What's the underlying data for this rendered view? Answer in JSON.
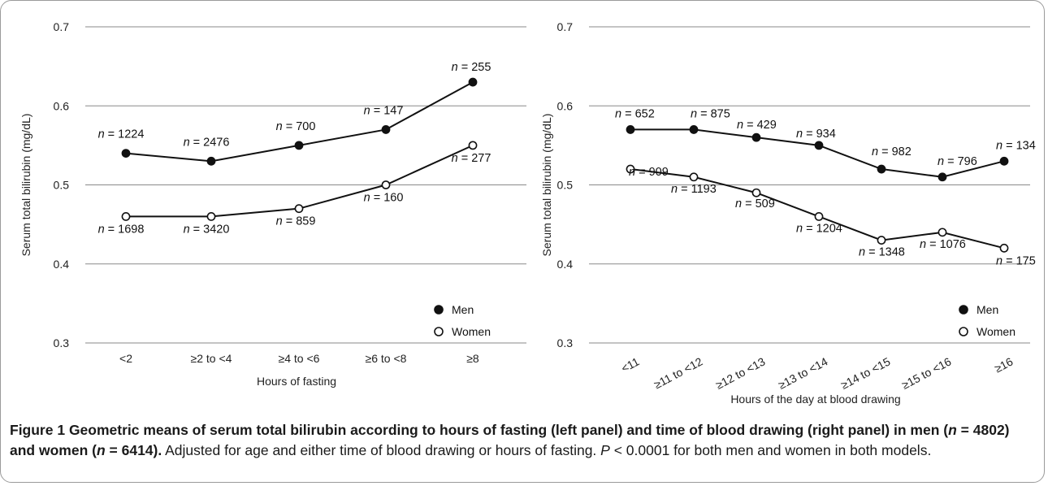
{
  "chart_data": [
    {
      "type": "line",
      "xlabel": "Hours of fasting",
      "ylabel": "Serum total bilirubin (mg/dL)",
      "categories": [
        "<2",
        "≥2 to <4",
        "≥4 to <6",
        "≥6 to <8",
        "≥8"
      ],
      "ylim": [
        0.3,
        0.7
      ],
      "yticks": [
        "0.3",
        "0.4",
        "0.5",
        "0.6",
        "0.7"
      ],
      "grid": true,
      "legend_position": "bottom-right",
      "series": [
        {
          "name": "Men",
          "marker": "filled",
          "values": [
            0.54,
            0.53,
            0.55,
            0.57,
            0.63
          ],
          "n": [
            "1224",
            "2476",
            "700",
            "147",
            "255"
          ]
        },
        {
          "name": "Women",
          "marker": "open",
          "values": [
            0.46,
            0.46,
            0.47,
            0.5,
            0.55
          ],
          "n": [
            "1698",
            "3420",
            "859",
            "160",
            "277"
          ]
        }
      ]
    },
    {
      "type": "line",
      "xlabel": "Hours of the day at blood drawing",
      "ylabel": "Serum total bilirubin (mg/dL)",
      "categories": [
        "<11",
        "≥11 to <12",
        "≥12 to <13",
        "≥13 to <14",
        "≥14 to <15",
        "≥15 to <16",
        "≥16"
      ],
      "ylim": [
        0.3,
        0.7
      ],
      "yticks": [
        "0.3",
        "0.4",
        "0.5",
        "0.6",
        "0.7"
      ],
      "grid": true,
      "legend_position": "bottom-right",
      "series": [
        {
          "name": "Men",
          "marker": "filled",
          "values": [
            0.57,
            0.57,
            0.56,
            0.55,
            0.52,
            0.51,
            0.53
          ],
          "n": [
            "652",
            "875",
            "429",
            "934",
            "982",
            "796",
            "134"
          ]
        },
        {
          "name": "Women",
          "marker": "open",
          "values": [
            0.52,
            0.51,
            0.49,
            0.46,
            0.43,
            0.44,
            0.42
          ],
          "n": [
            "909",
            "1193",
            "509",
            "1204",
            "1348",
            "1076",
            "175"
          ]
        }
      ]
    }
  ],
  "n_prefix": "n",
  "n_equals": " = ",
  "caption": {
    "figure_label": "Figure 1",
    "title_part1": " Geometric means of serum total bilirubin according to hours of fasting (left panel) and time of blood drawing (right panel) in men (",
    "n_men_label": "n",
    "n_men_value": " = 4802) and women (",
    "n_women_label": "n",
    "n_women_value": " = 6414).",
    "body_part1": " Adjusted for age and either time of blood drawing or hours of fasting. ",
    "p_symbol": "P",
    "body_part2": " < 0.0001 for both men and women in both models."
  }
}
